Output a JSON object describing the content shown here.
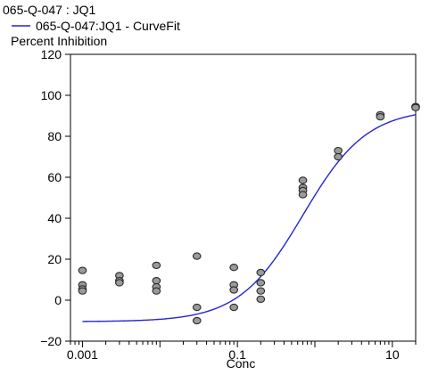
{
  "header": {
    "title": "065-Q-047  : JQ1",
    "legend_label": "065-Q-047:JQ1 - CurveFit"
  },
  "colors": {
    "curve": "#2424d8",
    "point_fill": "#9a9a9a",
    "point_stroke": "#2a2a2a",
    "axis": "#000000"
  },
  "chart_data": {
    "type": "scatter",
    "ylabel": "Percent Inhibition",
    "xlabel": "Conc",
    "x_scale": "log10",
    "xlim": [
      0.0007,
      20
    ],
    "ylim": [
      -20,
      120
    ],
    "y_ticks": [
      -20,
      0,
      20,
      40,
      60,
      80,
      100,
      120
    ],
    "y_tick_labels": [
      "−20",
      "0",
      "20",
      "40",
      "60",
      "80",
      "100",
      "120"
    ],
    "x_ticks": [
      0.001,
      0.1,
      10
    ],
    "x_tick_labels": [
      "0.001",
      "0.1",
      "10"
    ],
    "grid": false,
    "legend": "top-left",
    "series": [
      {
        "name": "065-Q-047:JQ1 - CurveFit",
        "kind": "line",
        "model": "4PL",
        "bottom": -10.5,
        "top": 93.5,
        "ec50": 0.7,
        "hill": 1.05
      },
      {
        "kind": "scatter",
        "points": [
          [
            0.001,
            14.5
          ],
          [
            0.001,
            7.5
          ],
          [
            0.001,
            5.5
          ],
          [
            0.001,
            4.5
          ],
          [
            0.003,
            12
          ],
          [
            0.003,
            9.5
          ],
          [
            0.003,
            8.5
          ],
          [
            0.009,
            17
          ],
          [
            0.009,
            9.5
          ],
          [
            0.009,
            6.5
          ],
          [
            0.009,
            4.5
          ],
          [
            0.03,
            21.5
          ],
          [
            0.03,
            -3.5
          ],
          [
            0.03,
            -10
          ],
          [
            0.09,
            16
          ],
          [
            0.09,
            7.5
          ],
          [
            0.09,
            5
          ],
          [
            0.09,
            -3.5
          ],
          [
            0.2,
            13.5
          ],
          [
            0.2,
            8.5
          ],
          [
            0.2,
            4.5
          ],
          [
            0.2,
            0.5
          ],
          [
            0.7,
            58.5
          ],
          [
            0.7,
            55
          ],
          [
            0.7,
            53.5
          ],
          [
            0.7,
            51.5
          ],
          [
            2,
            73
          ],
          [
            2,
            70
          ],
          [
            7,
            90.5
          ],
          [
            7,
            89.5
          ],
          [
            20,
            94.5
          ],
          [
            20,
            94
          ]
        ]
      }
    ]
  }
}
